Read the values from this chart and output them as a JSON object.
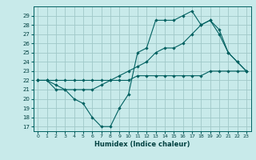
{
  "title": "",
  "xlabel": "Humidex (Indice chaleur)",
  "bg_color": "#c8eaea",
  "grid_color": "#a0c8c8",
  "line_color": "#006060",
  "ylim": [
    16.5,
    30
  ],
  "xlim": [
    -0.5,
    23.5
  ],
  "yticks": [
    17,
    18,
    19,
    20,
    21,
    22,
    23,
    24,
    25,
    26,
    27,
    28,
    29
  ],
  "xticks": [
    0,
    1,
    2,
    3,
    4,
    5,
    6,
    7,
    8,
    9,
    10,
    11,
    12,
    13,
    14,
    15,
    16,
    17,
    18,
    19,
    20,
    21,
    22,
    23
  ],
  "series": [
    {
      "x": [
        0,
        1,
        2,
        3,
        4,
        5,
        6,
        7,
        8,
        9,
        10,
        11,
        12,
        13,
        14,
        15,
        16,
        17,
        18,
        19,
        20,
        21,
        22,
        23
      ],
      "y": [
        22,
        22,
        21,
        21,
        20,
        19.5,
        18,
        17,
        17,
        19,
        20.5,
        25,
        25.5,
        28.5,
        28.5,
        28.5,
        29,
        29.5,
        28,
        28.5,
        27,
        25,
        24,
        23
      ]
    },
    {
      "x": [
        0,
        1,
        2,
        3,
        4,
        5,
        6,
        7,
        8,
        9,
        10,
        11,
        12,
        13,
        14,
        15,
        16,
        17,
        18,
        19,
        20,
        21,
        22,
        23
      ],
      "y": [
        22,
        22,
        21.5,
        21,
        21,
        21,
        21,
        21.5,
        22,
        22.5,
        23,
        23.5,
        24,
        25,
        25.5,
        25.5,
        26,
        27,
        28,
        28.5,
        27.5,
        25,
        24,
        23
      ]
    },
    {
      "x": [
        0,
        1,
        2,
        3,
        4,
        5,
        6,
        7,
        8,
        9,
        10,
        11,
        12,
        13,
        14,
        15,
        16,
        17,
        18,
        19,
        20,
        21,
        22,
        23
      ],
      "y": [
        22,
        22,
        22,
        22,
        22,
        22,
        22,
        22,
        22,
        22,
        22,
        22.5,
        22.5,
        22.5,
        22.5,
        22.5,
        22.5,
        22.5,
        22.5,
        23,
        23,
        23,
        23,
        23
      ]
    }
  ]
}
